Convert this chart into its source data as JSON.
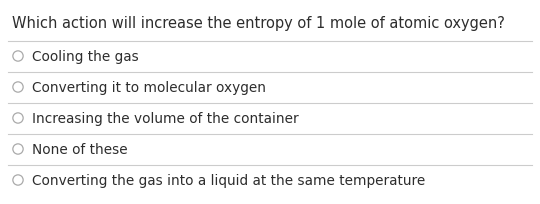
{
  "question": "Which action will increase the entropy of 1 mole of atomic oxygen?",
  "options": [
    "Cooling the gas",
    "Converting it to molecular oxygen",
    "Increasing the volume of the container",
    "None of these",
    "Converting the gas into a liquid at the same temperature"
  ],
  "background_color": "#ffffff",
  "text_color": "#2d2d2d",
  "question_fontsize": 10.5,
  "option_fontsize": 9.8,
  "line_color": "#cccccc",
  "circle_color": "#aaaaaa"
}
